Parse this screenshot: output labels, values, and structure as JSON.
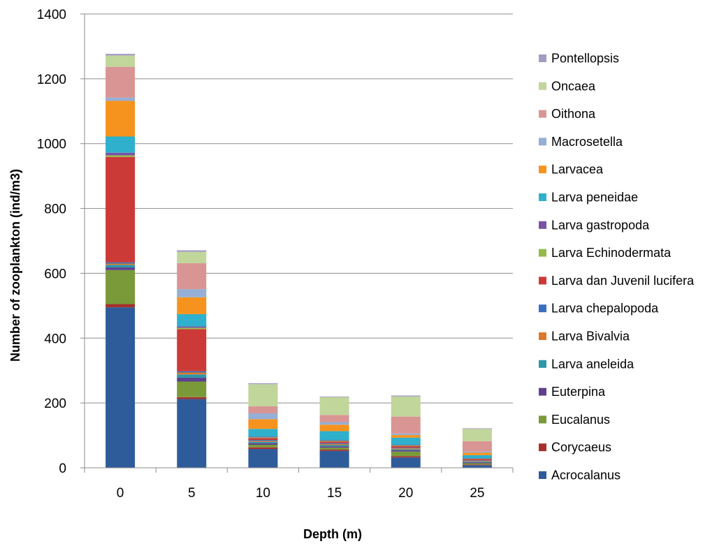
{
  "chart_data": {
    "type": "bar",
    "stacked": true,
    "title": "",
    "xlabel": "Depth (m)",
    "ylabel": "Number of zooplankton (ind/m3)",
    "ylim": [
      0,
      1400
    ],
    "yticks": [
      "0",
      "200",
      "400",
      "600",
      "800",
      "1000",
      "1200",
      "1400"
    ],
    "grid": true,
    "legend_position": "right",
    "categories": [
      "0",
      "5",
      "10",
      "15",
      "20",
      "25"
    ],
    "series": [
      {
        "name": "Acrocalanus",
        "color": "#2E5C9A",
        "values": [
          495,
          212,
          58,
          52,
          32,
          8
        ]
      },
      {
        "name": "Corycaeus",
        "color": "#A6302D",
        "values": [
          10,
          6,
          5,
          4,
          4,
          2
        ]
      },
      {
        "name": "Eucalanus",
        "color": "#7A9A3A",
        "values": [
          105,
          48,
          8,
          6,
          14,
          4
        ]
      },
      {
        "name": "Euterpina",
        "color": "#5E3F8F",
        "values": [
          8,
          12,
          5,
          4,
          4,
          3
        ]
      },
      {
        "name": "Larva aneleida",
        "color": "#2D96A8",
        "values": [
          8,
          10,
          4,
          4,
          3,
          2
        ]
      },
      {
        "name": "Larva Bivalvia",
        "color": "#DB7A2C",
        "values": [
          4,
          6,
          3,
          3,
          3,
          2
        ]
      },
      {
        "name": "Larva chepalopoda",
        "color": "#3A6FC0",
        "values": [
          4,
          4,
          3,
          3,
          2,
          2
        ]
      },
      {
        "name": "Larva dan Juvenil lucifera",
        "color": "#CC3A37",
        "values": [
          325,
          130,
          6,
          5,
          5,
          4
        ]
      },
      {
        "name": "Larva Echinodermata",
        "color": "#96BA4A",
        "values": [
          5,
          4,
          2,
          2,
          2,
          1
        ]
      },
      {
        "name": "Larva gastropoda",
        "color": "#7952A6",
        "values": [
          8,
          4,
          2,
          2,
          2,
          1
        ]
      },
      {
        "name": "Larva peneidae",
        "color": "#2FB0CC",
        "values": [
          50,
          38,
          24,
          28,
          22,
          10
        ]
      },
      {
        "name": "Larvacea",
        "color": "#F6931E",
        "values": [
          110,
          52,
          30,
          20,
          8,
          8
        ]
      },
      {
        "name": "Macrosetella",
        "color": "#95AFD6",
        "values": [
          10,
          25,
          18,
          8,
          5,
          3
        ]
      },
      {
        "name": "Oithona",
        "color": "#D99593",
        "values": [
          95,
          80,
          22,
          22,
          52,
          32
        ]
      },
      {
        "name": "Oncaea",
        "color": "#C1D69B",
        "values": [
          35,
          35,
          68,
          55,
          62,
          38
        ]
      },
      {
        "name": "Pontellopsis",
        "color": "#A49BC2",
        "values": [
          5,
          5,
          3,
          2,
          3,
          2
        ]
      }
    ]
  }
}
